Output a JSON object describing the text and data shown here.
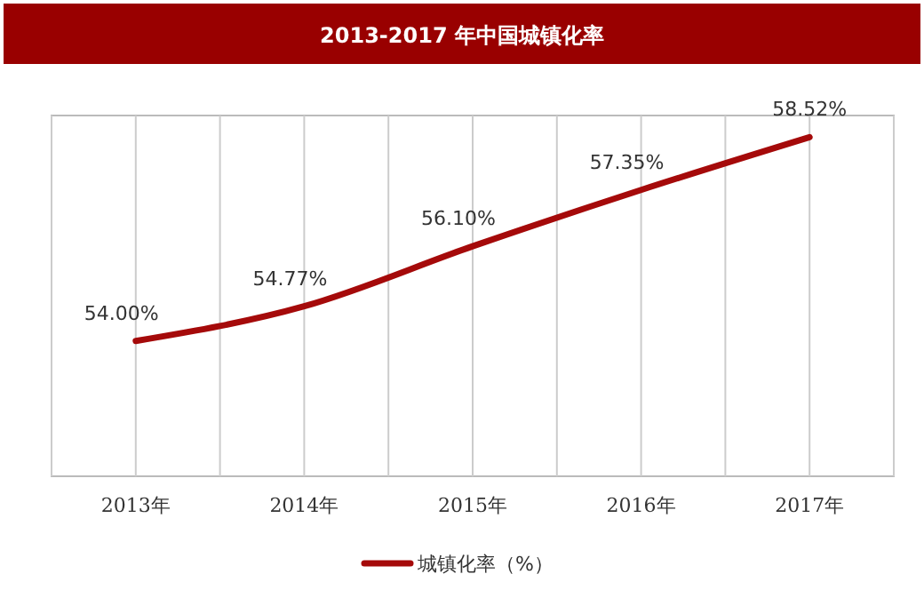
{
  "chart_data": {
    "type": "line",
    "title": "2013-2017 年中国城镇化率",
    "categories": [
      "2013年",
      "2014年",
      "2015年",
      "2016年",
      "2017年"
    ],
    "series": [
      {
        "name": "城镇化率（%）",
        "color": "#a50a0a",
        "values": [
          54.0,
          54.77,
          56.1,
          57.35,
          58.52
        ],
        "value_labels": [
          "54.00%",
          "54.77%",
          "56.10%",
          "57.35%",
          "58.52%"
        ]
      }
    ],
    "ylim": [
      51,
      59
    ],
    "grid": "x",
    "legend": "bottom",
    "marker": "none",
    "line_style": "solid",
    "tick_labels": "x"
  }
}
